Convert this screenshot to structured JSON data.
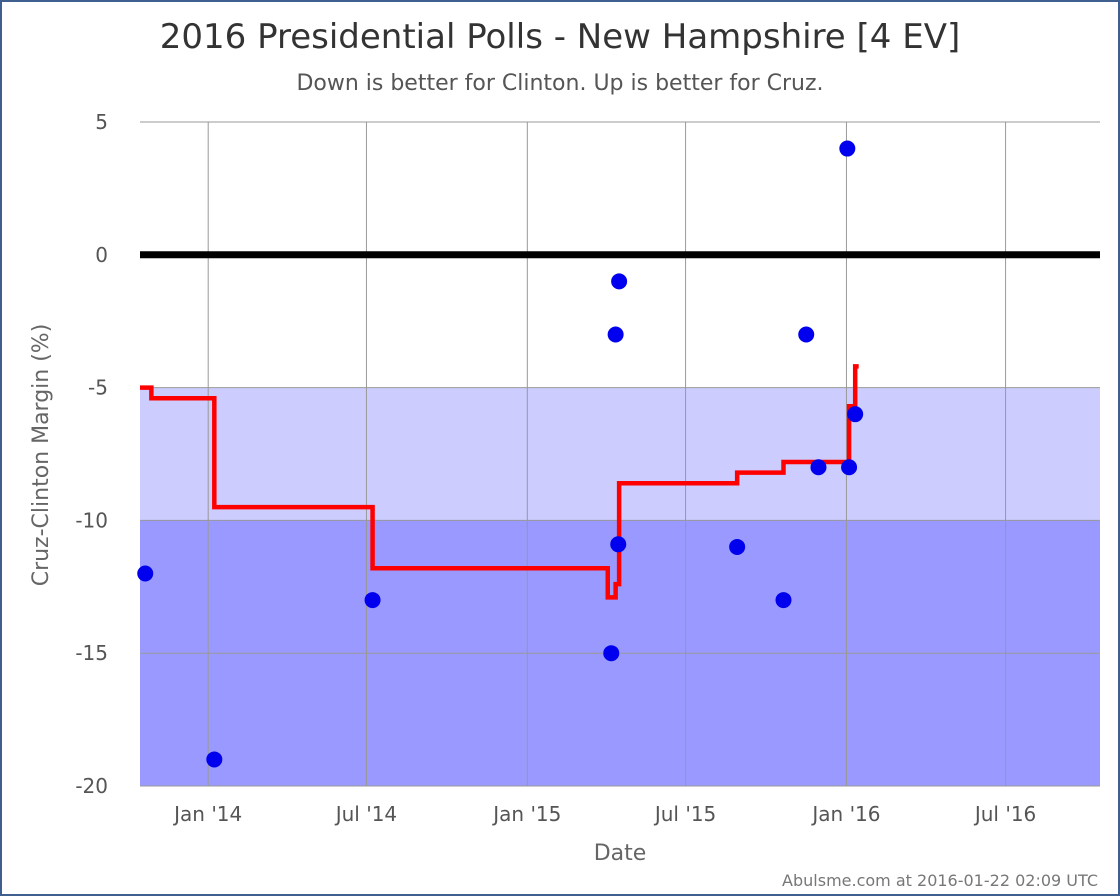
{
  "chart_data": {
    "type": "scatter",
    "title": "2016 Presidential Polls - New Hampshire [4 EV]",
    "subtitle": "Down is better for Clinton. Up is better for Cruz.",
    "xlabel": "Date",
    "ylabel": "Cruz-Clinton Margin (%)",
    "credit": "Abulsme.com at 2016-01-22 02:09 UTC",
    "xlim": [
      "2013-10-15",
      "2016-10-17"
    ],
    "ylim": [
      -20,
      5
    ],
    "yticks": [
      5,
      0,
      -5,
      -10,
      -15,
      -20
    ],
    "xticks": [
      {
        "date": "2014-01-01",
        "label": "Jan '14"
      },
      {
        "date": "2014-07-01",
        "label": "Jul '14"
      },
      {
        "date": "2015-01-01",
        "label": "Jan '15"
      },
      {
        "date": "2015-07-01",
        "label": "Jul '15"
      },
      {
        "date": "2016-01-01",
        "label": "Jan '16"
      },
      {
        "date": "2016-07-01",
        "label": "Jul '16"
      }
    ],
    "bands": [
      {
        "from": -5,
        "to": -10,
        "color": "#ccccff"
      },
      {
        "from": -10,
        "to": -20,
        "color": "#9999ff"
      }
    ],
    "zero_line": {
      "y": 0,
      "color": "#000000"
    },
    "grid": true,
    "series": [
      {
        "type": "scatter",
        "color": "#0000ee",
        "points": [
          {
            "x": "2013-10-21",
            "y": -12
          },
          {
            "x": "2014-01-08",
            "y": -19
          },
          {
            "x": "2014-07-08",
            "y": -13
          },
          {
            "x": "2015-04-07",
            "y": -15
          },
          {
            "x": "2015-04-12",
            "y": -3
          },
          {
            "x": "2015-04-15",
            "y": -10.9
          },
          {
            "x": "2015-04-16",
            "y": -1
          },
          {
            "x": "2015-08-29",
            "y": -11
          },
          {
            "x": "2015-10-21",
            "y": -13
          },
          {
            "x": "2015-11-16",
            "y": -3
          },
          {
            "x": "2015-11-30",
            "y": -8
          },
          {
            "x": "2016-01-02",
            "y": 4
          },
          {
            "x": "2016-01-04",
            "y": -8
          },
          {
            "x": "2016-01-11",
            "y": -6
          }
        ]
      },
      {
        "type": "step",
        "color": "#ff0000",
        "points": [
          {
            "x": "2013-10-15",
            "y": -5
          },
          {
            "x": "2013-10-28",
            "y": -5.4
          },
          {
            "x": "2014-01-08",
            "y": -9.5
          },
          {
            "x": "2014-07-08",
            "y": -11.8
          },
          {
            "x": "2015-04-03",
            "y": -12.9
          },
          {
            "x": "2015-04-12",
            "y": -12.4
          },
          {
            "x": "2015-04-16",
            "y": -8.6
          },
          {
            "x": "2015-08-29",
            "y": -8.2
          },
          {
            "x": "2015-10-21",
            "y": -7.8
          },
          {
            "x": "2016-01-04",
            "y": -5.7
          },
          {
            "x": "2016-01-11",
            "y": -4.2
          },
          {
            "x": "2016-01-15",
            "y": -4.2
          }
        ]
      }
    ]
  }
}
